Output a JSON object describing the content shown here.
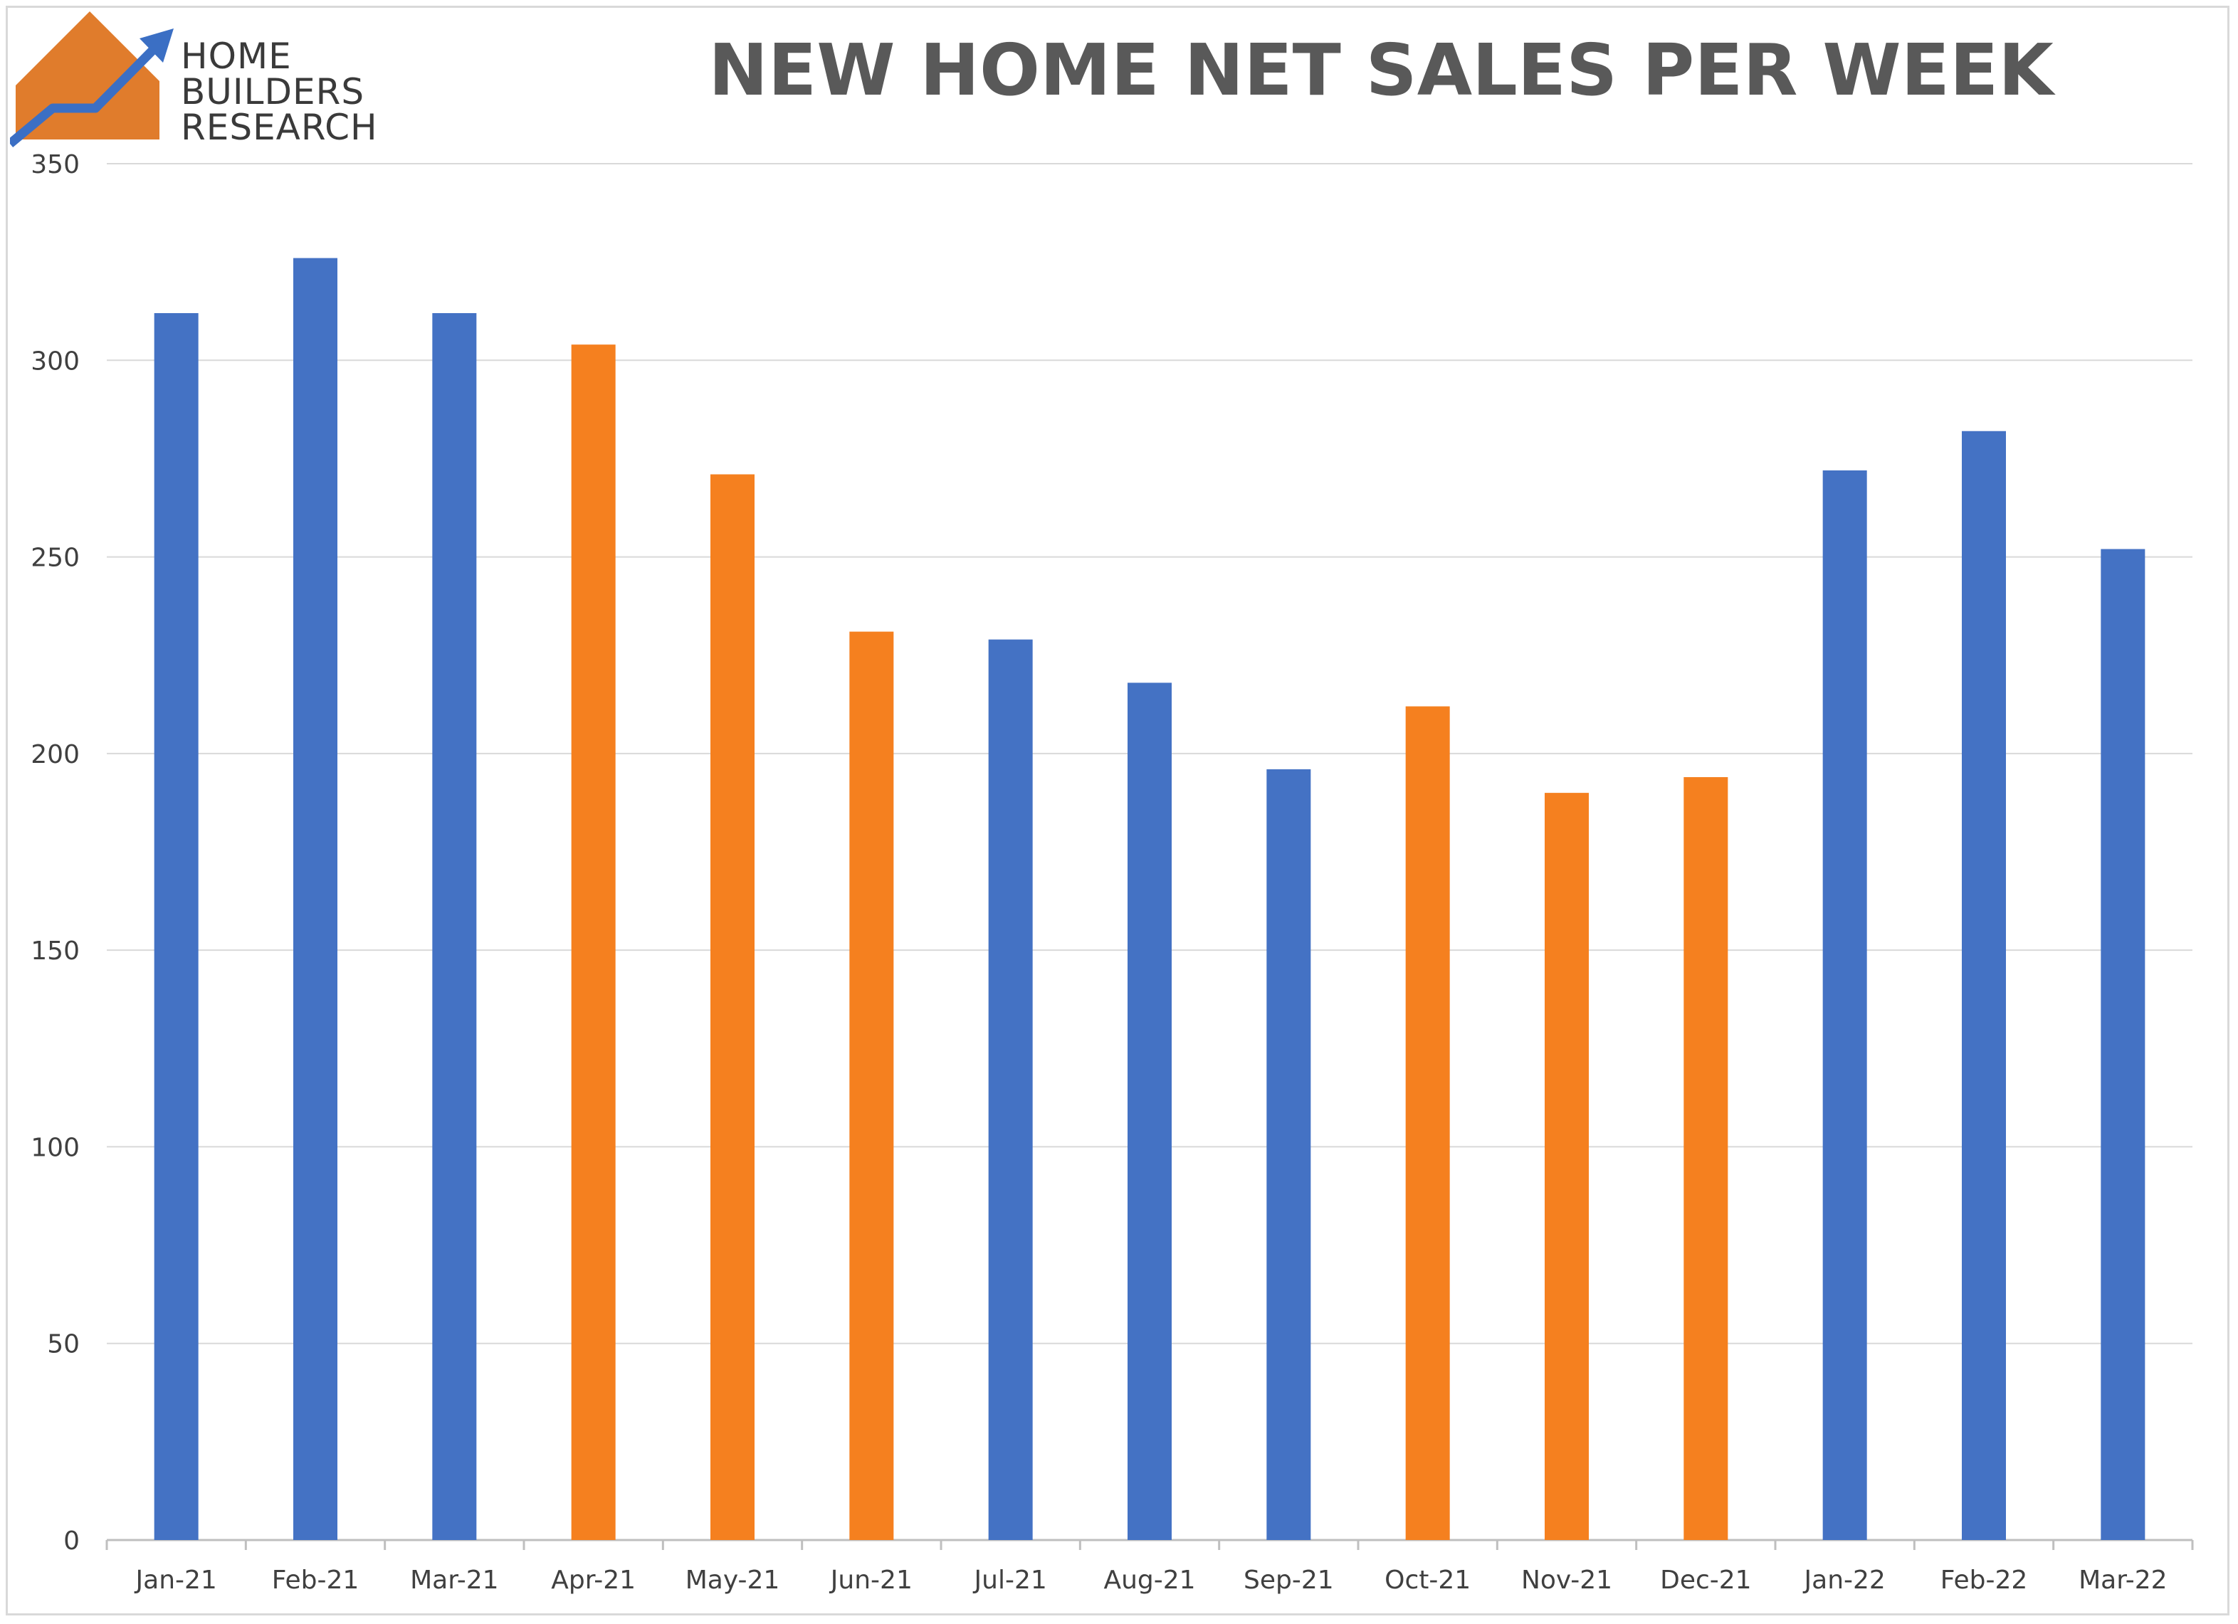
{
  "brand": {
    "line1": "HOME",
    "line2": "BUILDERS",
    "line3": "RESEARCH",
    "colors": {
      "house": "#E07C2C",
      "arrow": "#3B6FC4"
    }
  },
  "chart_data": {
    "type": "bar",
    "title": "NEW HOME NET SALES PER WEEK",
    "xlabel": "",
    "ylabel": "",
    "ylim": [
      0,
      350
    ],
    "yticks": [
      0,
      50,
      100,
      150,
      200,
      250,
      300,
      350
    ],
    "grid": true,
    "categories": [
      "Jan-21",
      "Feb-21",
      "Mar-21",
      "Apr-21",
      "May-21",
      "Jun-21",
      "Jul-21",
      "Aug-21",
      "Sep-21",
      "Oct-21",
      "Nov-21",
      "Dec-21",
      "Jan-22",
      "Feb-22",
      "Mar-22"
    ],
    "values": [
      312,
      326,
      312,
      304,
      271,
      231,
      229,
      218,
      196,
      212,
      190,
      194,
      272,
      282,
      252
    ],
    "bar_colors": [
      "#4472C4",
      "#4472C4",
      "#4472C4",
      "#F5801F",
      "#F5801F",
      "#F5801F",
      "#4472C4",
      "#4472C4",
      "#4472C4",
      "#F5801F",
      "#F5801F",
      "#F5801F",
      "#4472C4",
      "#4472C4",
      "#4472C4"
    ]
  }
}
